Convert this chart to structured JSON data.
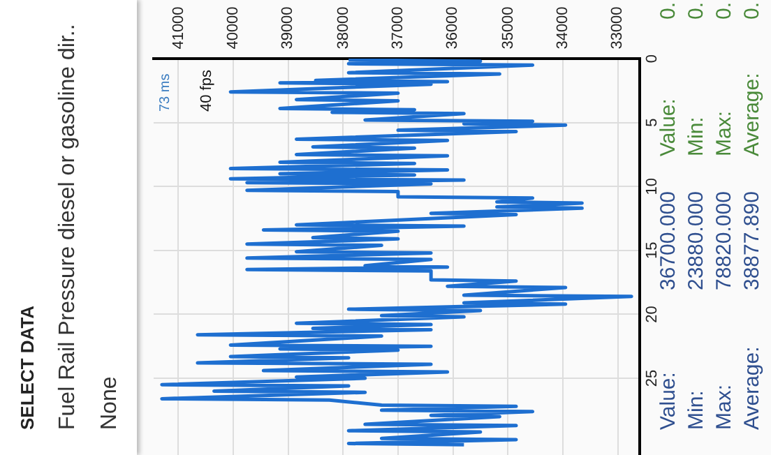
{
  "chart_data": {
    "type": "line",
    "title": "SELECT DATA",
    "subtitle": "Fuel Rail Pressure diesel or gasoline dir..",
    "annotations": [
      "None",
      "73 ms",
      "40 fps",
      "Value:",
      "36700.000",
      "Min:",
      "23880.000",
      "Max:",
      "78820.000",
      "Average:",
      "38877.890",
      "Value:",
      "0.",
      "Min:",
      "0.",
      "Max:",
      "0.",
      "Average:",
      "0."
    ],
    "x": [
      0.1,
      0.2,
      0.4,
      0.5,
      1.1,
      1.2,
      1.7,
      1.8,
      1.9,
      2.0,
      2.6,
      2.7,
      3.2,
      3.3,
      3.9,
      4.0,
      4.2,
      4.3,
      4.8,
      4.9,
      5.1,
      5.2,
      5.6,
      5.7,
      6.3,
      6.4,
      6.9,
      7.0,
      7.5,
      7.6,
      8.1,
      8.2,
      8.6,
      8.7,
      9.0,
      9.1,
      9.4,
      9.5,
      9.7,
      9.8,
      10.3,
      10.4,
      10.8,
      10.9,
      11.2,
      11.3,
      11.6,
      11.7,
      12.1,
      12.2,
      13.0,
      13.1,
      13.4,
      13.5,
      14.0,
      14.1,
      14.5,
      14.6,
      15.1,
      15.2,
      15.6,
      15.7,
      16.2,
      16.3,
      16.5,
      16.6,
      17.3,
      17.4,
      17.8,
      17.9,
      18.5,
      18.6,
      19.1,
      19.2,
      19.6,
      19.7,
      20.1,
      20.2,
      20.7,
      20.8,
      21.1,
      21.2,
      21.6,
      21.7,
      22.4,
      22.5,
      22.7,
      22.8,
      23.3,
      23.4,
      23.8,
      23.9,
      24.4,
      24.5,
      24.9,
      25.0,
      25.5,
      25.6,
      26.0,
      26.1,
      26.6,
      26.7,
      27.1,
      27.2,
      27.5,
      27.6,
      27.9,
      28.0,
      28.6,
      28.7,
      29.1,
      29.2,
      29.7,
      29.8,
      30.1,
      30.2
    ],
    "series": [
      {
        "color": "#1e6fd0",
        "values": [
          37900,
          35500,
          37900,
          34550,
          37900,
          35150,
          38500,
          36100,
          39150,
          36400,
          40050,
          37000,
          38850,
          37000,
          39150,
          36700,
          38200,
          35800,
          37600,
          34550,
          35800,
          33950,
          37000,
          34850,
          38850,
          36100,
          38550,
          36700,
          38850,
          36100,
          39150,
          36700,
          40050,
          36100,
          39150,
          36700,
          40050,
          35800,
          39750,
          36400,
          39750,
          37000,
          37000,
          34550,
          35200,
          33650,
          35200,
          33650,
          36400,
          34850,
          38850,
          35800,
          39450,
          37000,
          38550,
          37000,
          39750,
          37300,
          38850,
          36400,
          39750,
          36400,
          37600,
          36100,
          39750,
          36400,
          36400,
          34850,
          36100,
          33950,
          35800,
          32750,
          35800,
          33950,
          37900,
          35500,
          37300,
          35800,
          38850,
          36400,
          38550,
          36400,
          40650,
          37300,
          40050,
          36400,
          39150,
          37000,
          40050,
          37900,
          40650,
          36400,
          39450,
          36100,
          38850,
          37600,
          41300,
          37900,
          40350,
          37600,
          41300,
          38250,
          37300,
          34850,
          37300,
          34550,
          36400,
          35150,
          37600,
          34850,
          37900,
          35500,
          37300,
          34850,
          37900,
          35800
        ]
      }
    ],
    "orientation": "horizontal",
    "ylim": [
      31,
      0
    ],
    "yticks": [
      0,
      5,
      10,
      15,
      20,
      25
    ],
    "xlim": [
      41450,
      32600
    ],
    "xticks": [
      41000,
      40000,
      39000,
      38000,
      37000,
      36000,
      35000,
      34000,
      33000
    ],
    "grid": true,
    "legend": false,
    "marker": "none",
    "line_style": "solid"
  }
}
